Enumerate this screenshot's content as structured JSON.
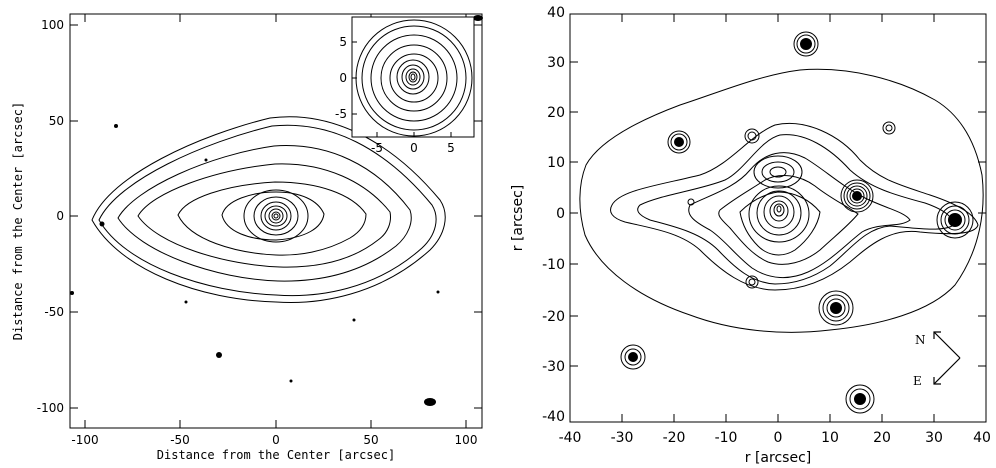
{
  "left_panel": {
    "xlabel": "Distance from the Center [arcsec]",
    "ylabel": "Distance from the Center [arcsec]",
    "xticks": [
      "-100",
      "-50",
      "0",
      "50",
      "100"
    ],
    "yticks": [
      "100",
      "50",
      "0",
      "-50",
      "-100"
    ],
    "inset": {
      "xticks": [
        "-5",
        "0",
        "5"
      ],
      "yticks": [
        "5",
        "0",
        "-5"
      ]
    }
  },
  "right_panel": {
    "xlabel": "r [arcsec]",
    "ylabel": "r [arcsec]",
    "xticks": [
      "-40",
      "-30",
      "-20",
      "-10",
      "0",
      "10",
      "20",
      "30",
      "40"
    ],
    "yticks": [
      "40",
      "30",
      "20",
      "10",
      "0",
      "-10",
      "-20",
      "-30",
      "-40"
    ],
    "compass": {
      "north": "N",
      "east": "E"
    }
  }
}
